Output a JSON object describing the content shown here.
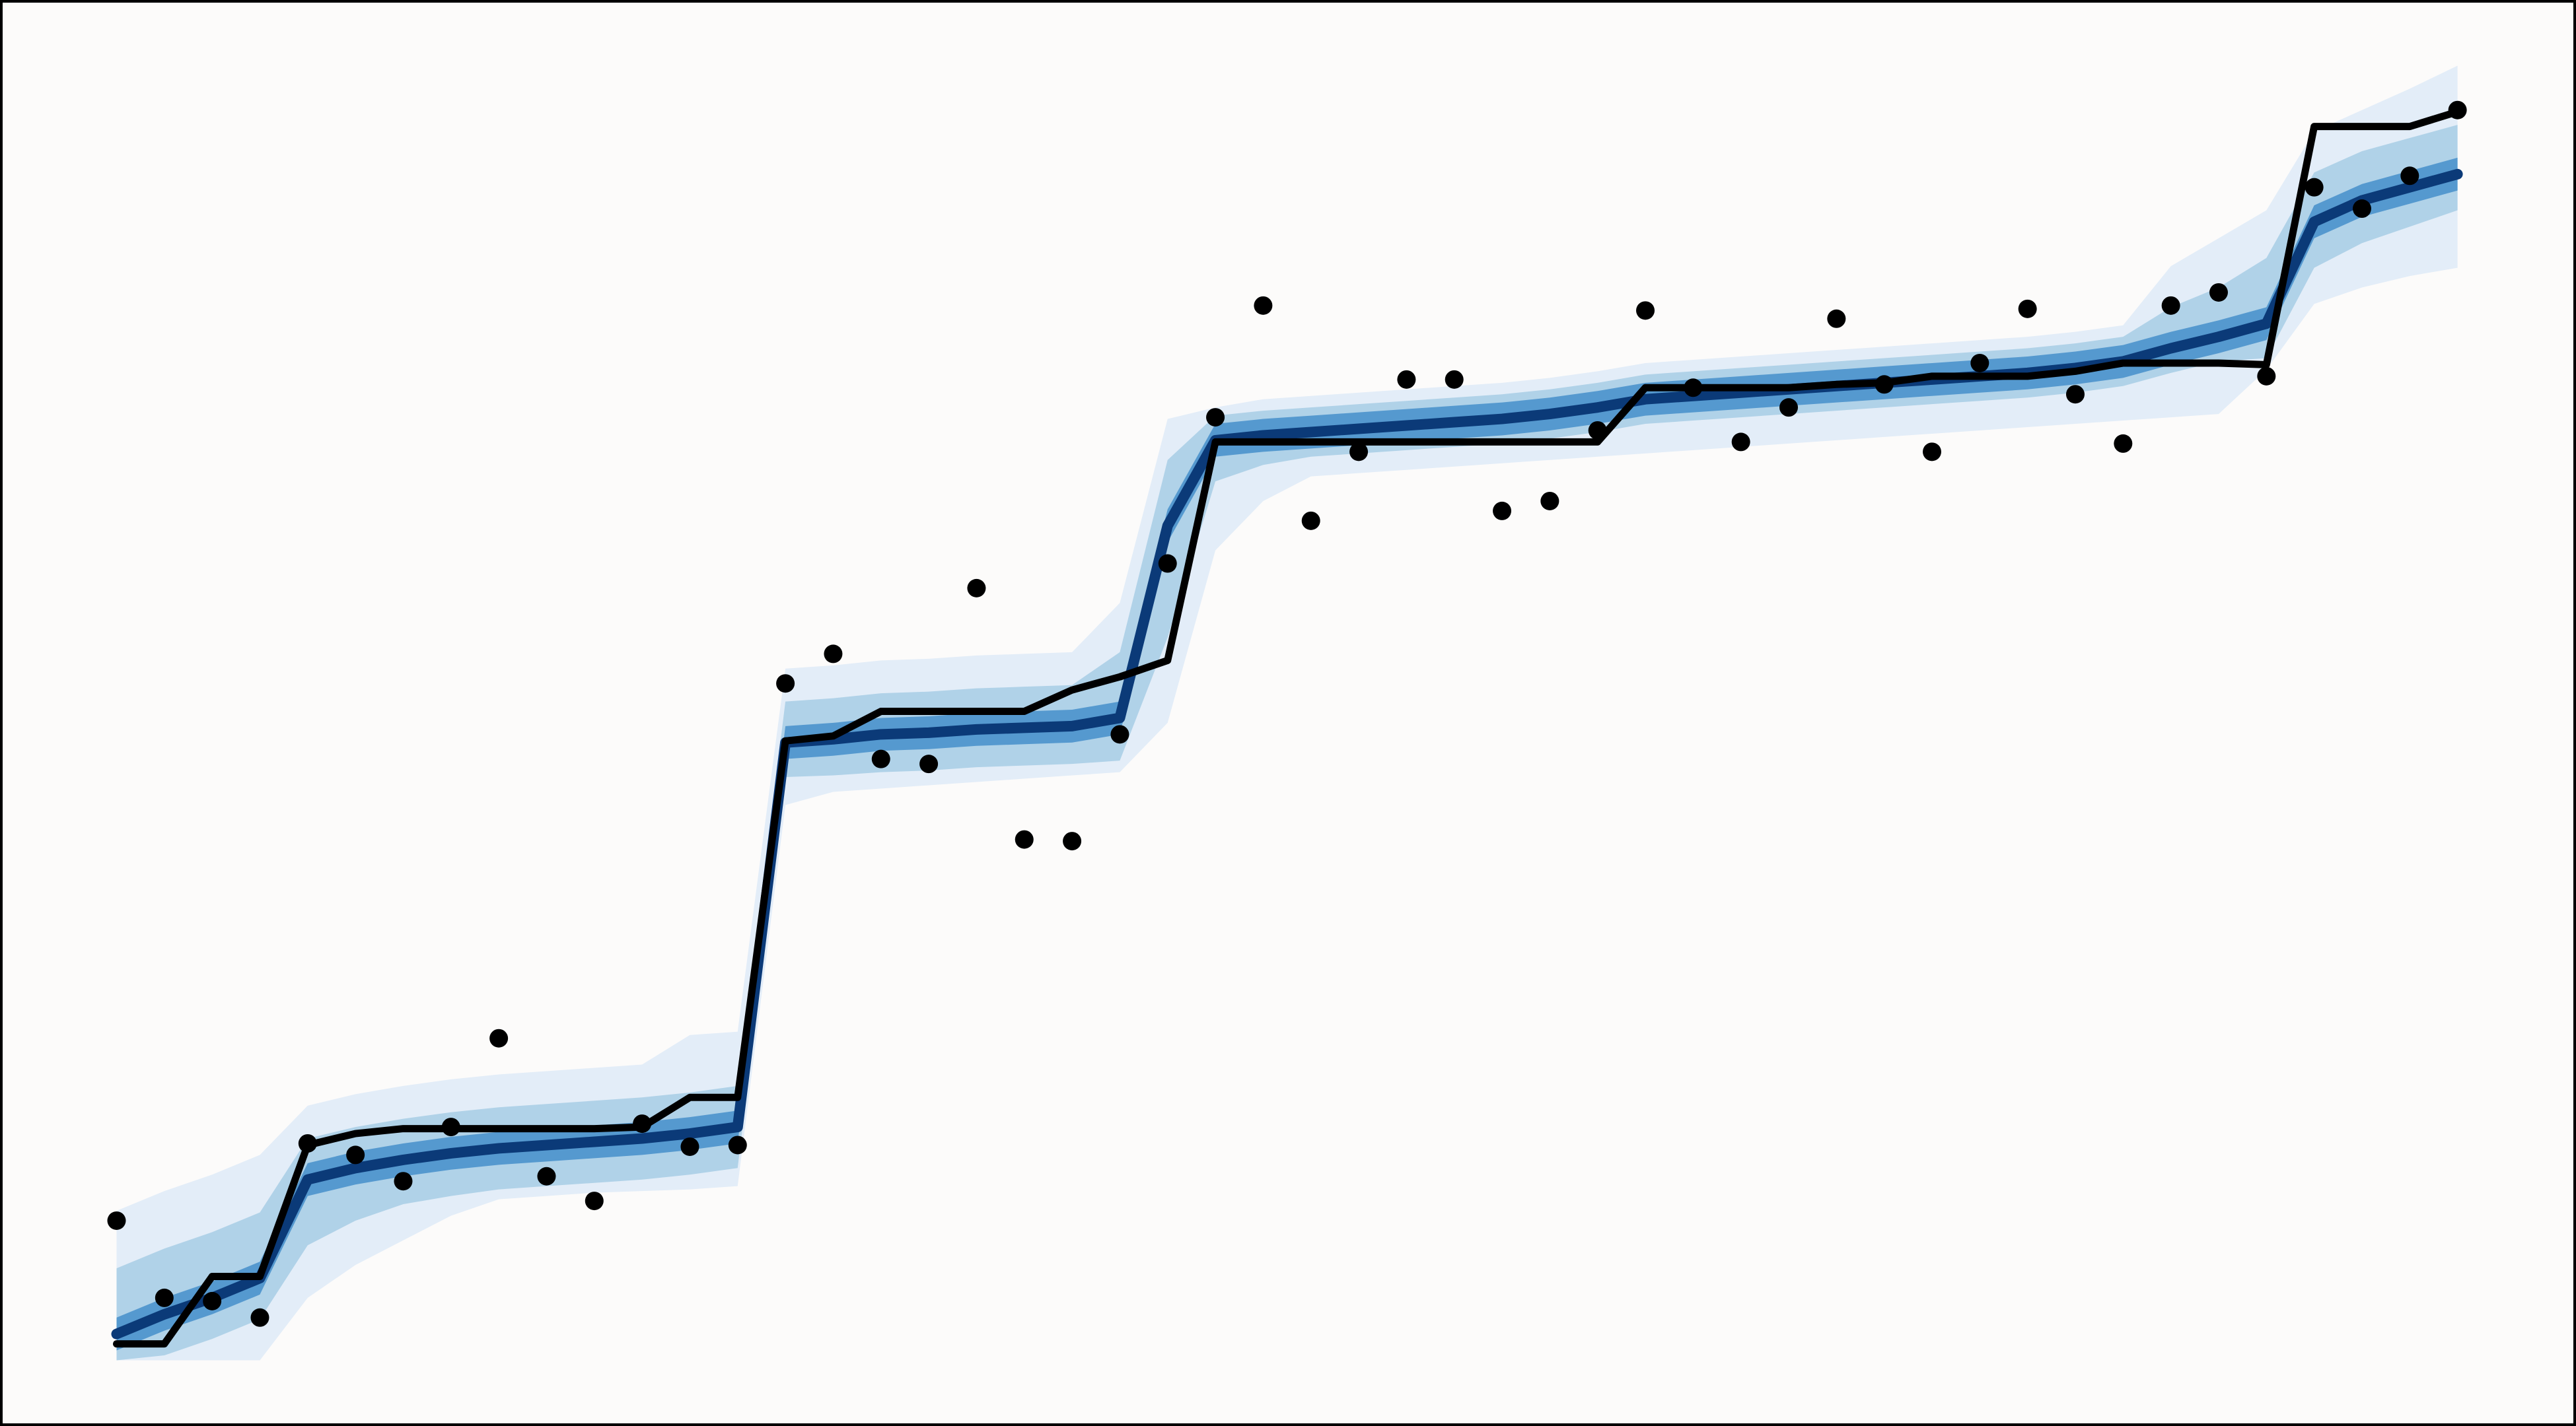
{
  "chart_data": {
    "type": "line",
    "x": [
      0,
      1,
      2,
      3,
      4,
      5,
      6,
      7,
      8,
      9,
      10,
      11,
      12,
      13,
      14,
      15,
      16,
      17,
      18,
      19,
      20,
      21,
      22,
      23,
      24,
      25,
      26,
      27,
      28,
      29,
      30,
      31,
      32,
      33,
      34,
      35,
      36,
      37,
      38,
      39,
      40,
      41,
      42,
      43,
      44,
      45,
      46,
      47,
      48,
      49
    ],
    "xlim": [
      -2.44,
      51.48
    ],
    "ylim": [
      0,
      868
    ],
    "bands": [
      {
        "color": "#e3edf8",
        "upper": [
          131,
          143,
          153,
          165,
          195,
          202,
          207,
          211,
          214,
          216,
          218,
          220,
          238,
          240,
          461,
          463,
          466,
          467,
          469,
          470,
          471,
          501,
          613,
          620,
          625,
          627,
          629,
          631,
          633,
          635,
          638,
          642,
          647,
          649,
          651,
          653,
          655,
          657,
          659,
          661,
          663,
          666,
          670,
          706,
          723,
          740,
          788,
          801,
          814,
          828
        ],
        "lower": [
          40,
          40,
          40,
          40,
          78,
          98,
          113,
          128,
          138,
          140,
          142,
          143,
          144,
          146,
          378,
          386,
          388,
          390,
          392,
          394,
          396,
          398,
          428,
          533,
          563,
          578,
          580,
          582,
          584,
          586,
          588,
          590,
          592,
          594,
          596,
          598,
          600,
          602,
          604,
          606,
          608,
          610,
          612,
          614,
          616,
          643,
          683,
          693,
          700,
          705
        ]
      },
      {
        "color": "#b0d2e8",
        "upper": [
          96,
          108,
          118,
          130,
          175,
          182,
          187,
          191,
          194,
          196,
          198,
          200,
          203,
          207,
          441,
          443,
          446,
          447,
          449,
          450,
          451,
          471,
          588,
          615,
          618,
          620,
          622,
          624,
          626,
          628,
          631,
          635,
          640,
          642,
          644,
          646,
          648,
          650,
          652,
          654,
          656,
          659,
          663,
          681,
          693,
          711,
          763,
          776,
          784,
          792
        ],
        "lower": [
          40,
          43,
          53,
          65,
          110,
          125,
          135,
          140,
          144,
          146,
          148,
          150,
          153,
          157,
          395,
          396,
          398,
          399,
          401,
          402,
          403,
          405,
          480,
          575,
          585,
          590,
          592,
          594,
          596,
          598,
          601,
          605,
          610,
          612,
          614,
          616,
          618,
          620,
          622,
          624,
          626,
          629,
          633,
          641,
          648,
          650,
          705,
          720,
          730,
          740
        ]
      },
      {
        "color": "#5599cf",
        "upper": [
          66,
          78,
          88,
          100,
          160,
          167,
          172,
          176,
          179,
          181,
          183,
          185,
          188,
          192,
          426,
          428,
          431,
          432,
          434,
          435,
          436,
          441,
          558,
          610,
          613,
          615,
          617,
          619,
          621,
          623,
          626,
          630,
          635,
          637,
          639,
          641,
          643,
          645,
          647,
          649,
          651,
          654,
          658,
          666,
          673,
          681,
          743,
          756,
          764,
          772
        ],
        "lower": [
          46,
          58,
          68,
          80,
          140,
          147,
          152,
          156,
          159,
          161,
          163,
          165,
          168,
          172,
          406,
          408,
          411,
          412,
          414,
          415,
          416,
          421,
          538,
          590,
          593,
          595,
          597,
          599,
          601,
          603,
          606,
          610,
          615,
          617,
          619,
          621,
          623,
          625,
          627,
          629,
          631,
          634,
          638,
          646,
          653,
          661,
          723,
          736,
          744,
          752
        ]
      }
    ],
    "series": [
      {
        "type": "line",
        "color": "#0b3a78",
        "values": [
          56,
          68,
          78,
          90,
          150,
          157,
          162,
          166,
          169,
          171,
          173,
          175,
          178,
          182,
          416,
          418,
          421,
          422,
          424,
          425,
          426,
          431,
          548,
          600,
          603,
          605,
          607,
          609,
          611,
          613,
          616,
          620,
          625,
          627,
          629,
          631,
          633,
          635,
          637,
          639,
          641,
          644,
          648,
          656,
          663,
          671,
          733,
          746,
          754,
          762
        ]
      },
      {
        "type": "line",
        "color": "#000000",
        "values": [
          50,
          50,
          91,
          91,
          171,
          178,
          181,
          181,
          181,
          181,
          181,
          182,
          200,
          200,
          417,
          420,
          435,
          435,
          435,
          435,
          448,
          456,
          466,
          599,
          599,
          599,
          599,
          599,
          599,
          599,
          599,
          599,
          632,
          632,
          632,
          632,
          634,
          635,
          639,
          639,
          639,
          642,
          647,
          647,
          647,
          646,
          791,
          791,
          791,
          800
        ]
      },
      {
        "type": "scatter",
        "color": "#000000",
        "values": [
          125,
          78,
          76,
          66,
          172,
          165,
          149,
          182,
          236,
          152,
          137,
          184,
          170,
          171,
          452,
          470,
          406,
          403,
          510,
          357,
          356,
          421,
          525,
          614,
          682,
          551,
          593,
          637,
          637,
          557,
          563,
          606,
          679,
          632,
          599,
          620,
          674,
          634,
          593,
          647,
          680,
          628,
          598,
          682,
          690,
          639,
          754,
          741,
          761,
          801
        ]
      }
    ]
  }
}
